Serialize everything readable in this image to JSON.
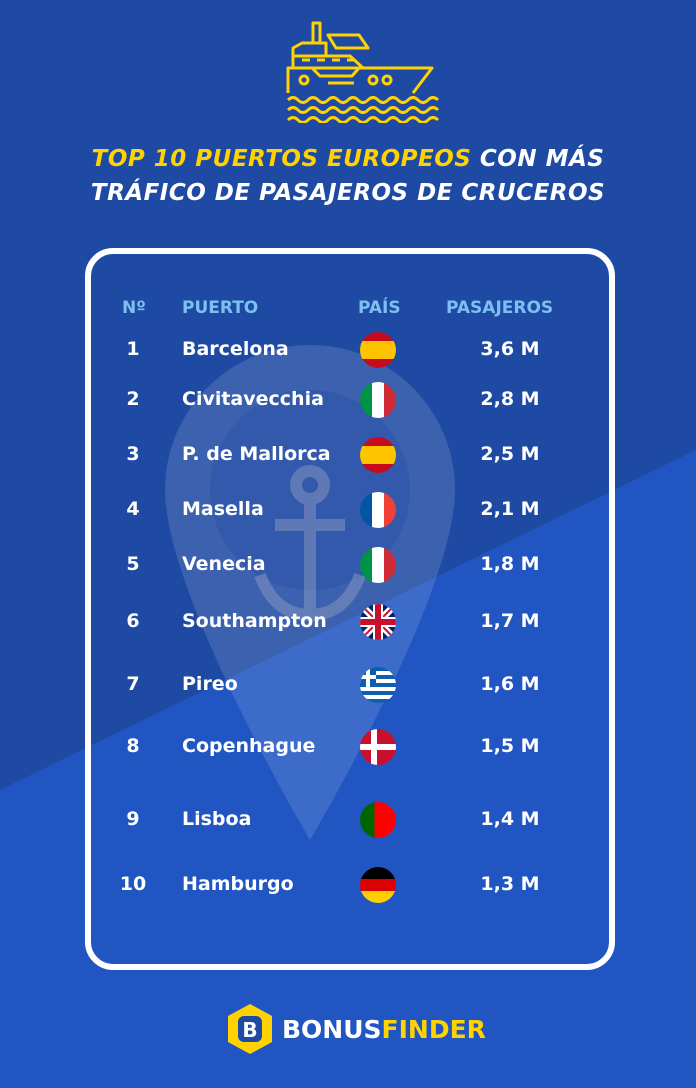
{
  "title": {
    "line1_highlight": "TOP 10  PUERTOS EUROPEOS",
    "line1_rest": " CON MÁS",
    "line2": "TRÁFICO DE PASAJEROS DE CRUCEROS"
  },
  "headers": {
    "num": "Nº",
    "port": "PUERTO",
    "country": "PAÍS",
    "passengers": "PASAJEROS"
  },
  "rows": [
    {
      "num": "1",
      "port": "Barcelona",
      "flag": "es",
      "value": "3,6 M"
    },
    {
      "num": "2",
      "port": "Civitavecchia",
      "flag": "it",
      "value": "2,8 M"
    },
    {
      "num": "3",
      "port": "P. de Mallorca",
      "flag": "es",
      "value": "2,5 M"
    },
    {
      "num": "4",
      "port": "Masella",
      "flag": "fr",
      "value": "2,1 M"
    },
    {
      "num": "5",
      "port": "Venecia",
      "flag": "it",
      "value": "1,8 M"
    },
    {
      "num": "6",
      "port": "Southampton",
      "flag": "uk",
      "value": "1,7 M"
    },
    {
      "num": "7",
      "port": "Pireo",
      "flag": "gr",
      "value": "1,6 M"
    },
    {
      "num": "8",
      "port": "Copenhague",
      "flag": "dk",
      "value": "1,5 M"
    },
    {
      "num": "9",
      "port": "Lisboa",
      "flag": "pt",
      "value": "1,4 M"
    },
    {
      "num": "10",
      "port": "Hamburgo",
      "flag": "de",
      "value": "1,3 M"
    }
  ],
  "logo": {
    "part1": "BONUS",
    "part2": "FINDER"
  },
  "colors": {
    "bg": "#1f4aa4",
    "accent": "#ffd200",
    "header": "#7cc0f2"
  }
}
